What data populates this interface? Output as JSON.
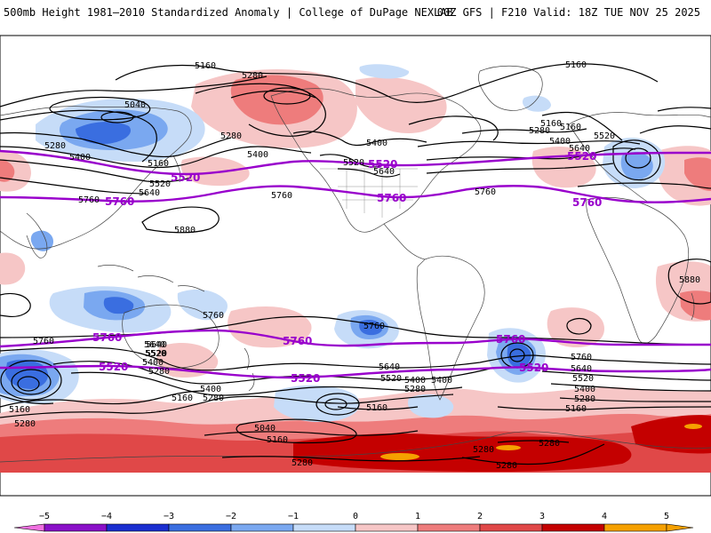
{
  "header": {
    "title_left": "500mb Height 1981—2010 Standardized Anomaly | College of DuPage NEXLAB",
    "title_right": "00Z GFS | F210 Valid: 18Z TUE NOV 25 2025"
  },
  "colors": {
    "anom_pos1": "#f6c6c6",
    "anom_pos2": "#ee7c7c",
    "anom_pos3": "#e04848",
    "anom_pos4": "#c40000",
    "anom_pos5": "#f5a000",
    "anom_neg1": "#c6dcf8",
    "anom_neg2": "#7aa8f0",
    "anom_neg3": "#3a6ee0",
    "anom_neg4": "#1a2ed0",
    "anom_neg5": "#8a10c8",
    "contour_black": "#000000",
    "contour_purple": "#9900cc"
  },
  "contour_labels": {
    "l5160_nw": "5160",
    "l5160_ne": "5160",
    "l5280_nw": "5280",
    "l5040_w": "5040",
    "l5280_w": "5280",
    "l5400_w": "5400",
    "l5160_w2": "5160",
    "l5520_w": "5520",
    "l5640_w": "5640",
    "l5280_npac": "5280",
    "l5400_npac": "5400",
    "l5400_na": "5400",
    "l5520_na": "5520",
    "l5640_na": "5640",
    "l5280_atl": "5280",
    "l5400_atl": "5400",
    "l5160_atl": "5160",
    "l5520_atl": "5520",
    "l5640_atl": "5640",
    "l5760_e": "5760",
    "l5760_pac": "5760",
    "l5760_atl": "5760",
    "l5880_pac": "5880",
    "l5880_af": "5880",
    "l5760_aus": "5760",
    "l5760_sa": "5760",
    "l5760_sw": "5760",
    "l5640_sw": "5640",
    "l5520_sw": "5520",
    "l5400_sw": "5400",
    "l5160_sw": "5160",
    "l5280_sw": "5280",
    "l5160_sp": "5160",
    "l5040_sp": "5040",
    "l5160_sp2": "5160",
    "l5280_sp": "5280",
    "l5400_sp": "5400",
    "l5640_sp": "5640",
    "l5520_sp": "5520",
    "l5400_sp2": "5400",
    "l5280_sp2": "5280",
    "l5160_sp3": "5160",
    "l5280_ant": "5280",
    "l5280_ant2": "5280",
    "l5280_ant3": "5280",
    "l5760_se": "5760",
    "l5640_se": "5640",
    "l5520_se": "5520",
    "l5400_se": "5400",
    "l5280_se": "5280",
    "l5160_se": "5160",
    "l5640_aus": "5640",
    "l5520_aus": "5520",
    "l5400_aus": "5400",
    "l5280_aus": "5280",
    "l5160_aus": "5160",
    "l5280_far": "5280"
  },
  "purple_labels": {
    "n5520_w": "5520",
    "n5520_na": "5520",
    "n5520_e": "5520",
    "n5760_w": "5760",
    "n5760_na": "5760",
    "n5760_e": "5760",
    "s5760_w": "5760",
    "s5760_pac": "5760",
    "s5760_atl": "5760",
    "s5520_w": "5520",
    "s5520_pac": "5520",
    "s5520_atl": "5520"
  },
  "colorbar": {
    "ticks": [
      "−5",
      "−4",
      "−3",
      "−2",
      "−1",
      "0",
      "1",
      "2",
      "3",
      "4",
      "5"
    ],
    "values": [
      -5,
      -4,
      -3,
      -2,
      -1,
      0,
      1,
      2,
      3,
      4,
      5
    ]
  }
}
